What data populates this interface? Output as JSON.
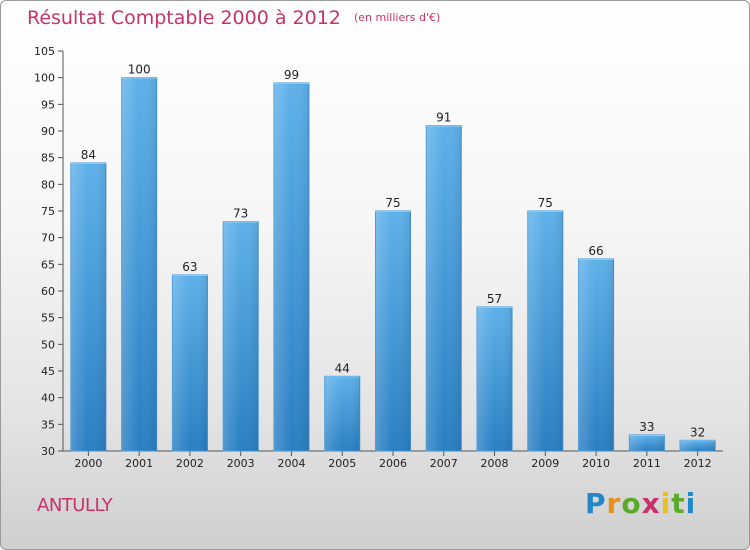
{
  "header": {
    "title": "Résultat Comptable 2000 à 2012",
    "subtitle": "(en milliers d'€)"
  },
  "footer": {
    "commune": "ANTULLY",
    "logo_letters": [
      "P",
      "r",
      "o",
      "x",
      "i",
      "t",
      "i"
    ]
  },
  "colors": {
    "title": "#c8326a",
    "bar_top": "#5fb1ea",
    "bar_bottom": "#2a7fc2"
  },
  "chart_data": {
    "type": "bar",
    "title": "Résultat Comptable 2000 à 2012",
    "subtitle": "(en milliers d'€)",
    "xlabel": "",
    "ylabel": "",
    "categories": [
      "2000",
      "2001",
      "2002",
      "2003",
      "2004",
      "2005",
      "2006",
      "2007",
      "2008",
      "2009",
      "2010",
      "2011",
      "2012"
    ],
    "values": [
      84,
      100,
      63,
      73,
      99,
      44,
      75,
      91,
      57,
      75,
      66,
      33,
      32
    ],
    "ylim": [
      30,
      105
    ],
    "yticks": [
      30,
      35,
      40,
      45,
      50,
      55,
      60,
      65,
      70,
      75,
      80,
      85,
      90,
      95,
      100,
      105
    ],
    "grid": false,
    "legend": "none"
  }
}
